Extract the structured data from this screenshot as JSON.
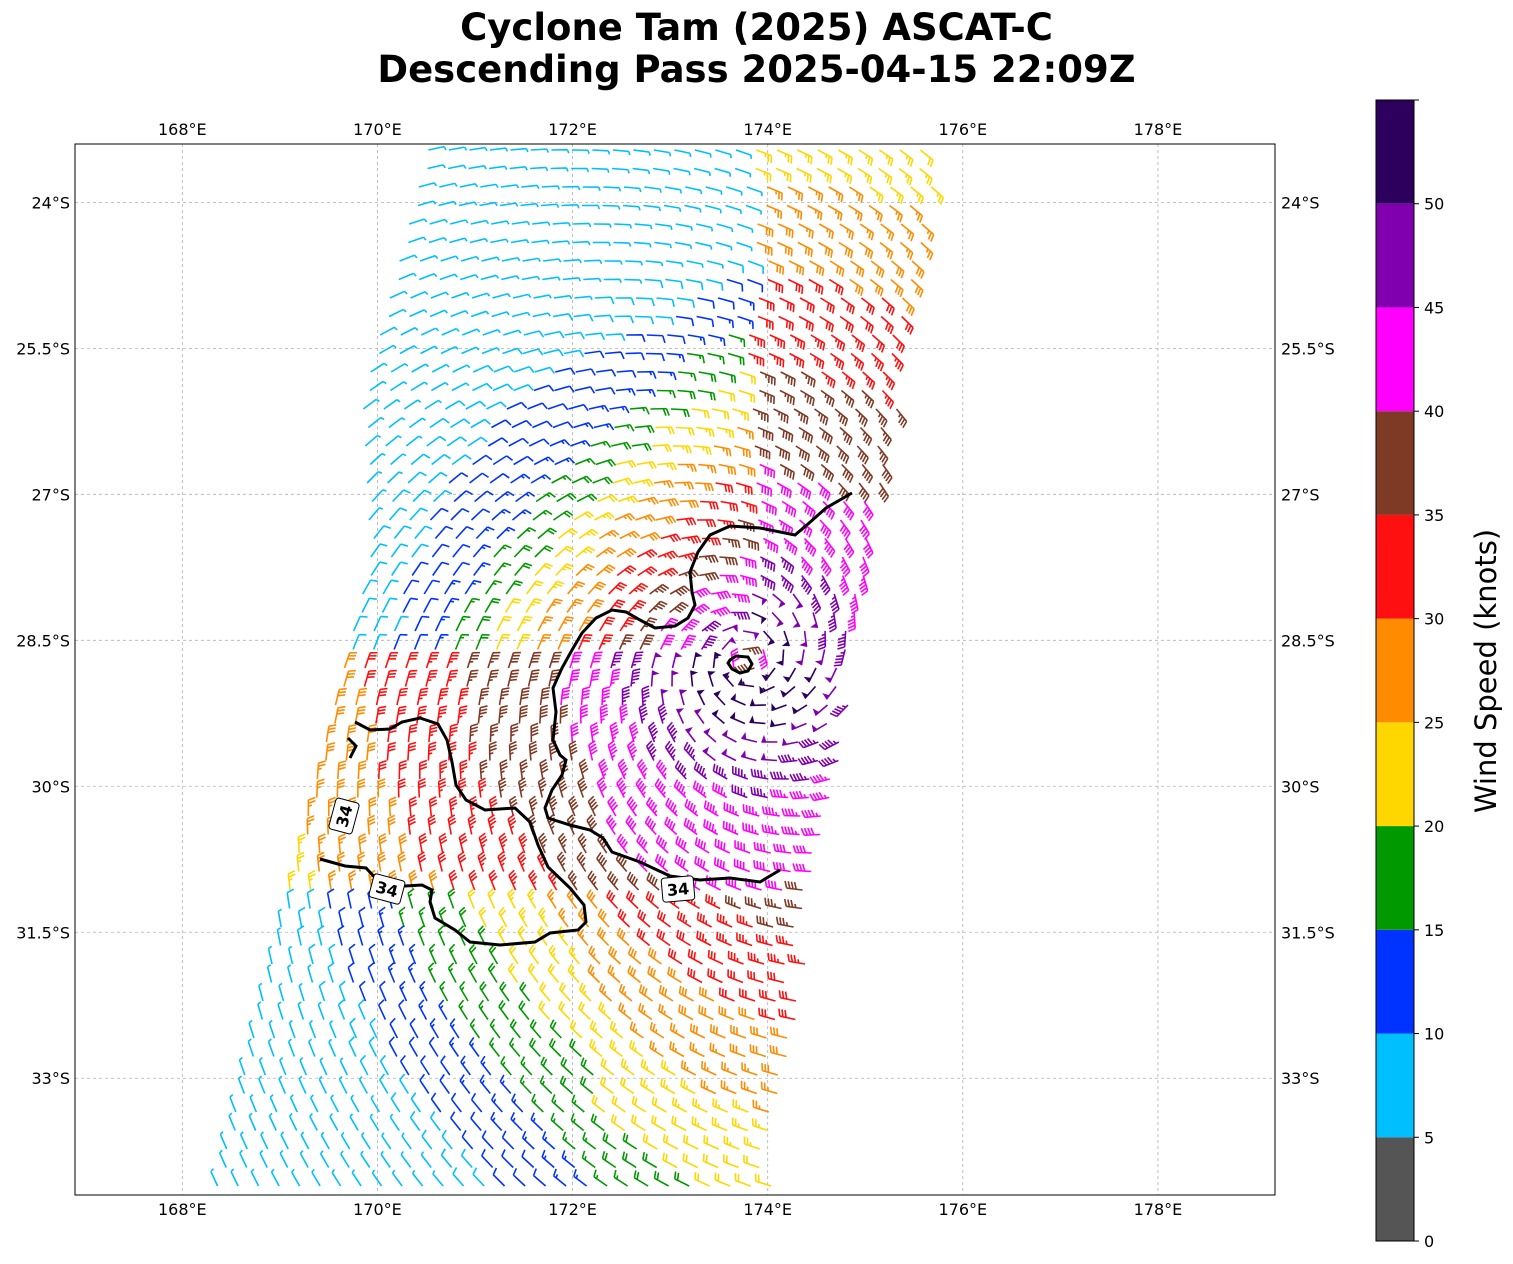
{
  "title": {
    "line1": "Cyclone Tam (2025) ASCAT-C",
    "line2": "Descending Pass 2025-04-15 22:09Z"
  },
  "chart_data": {
    "type": "wind_barb_map",
    "lon_range": [
      166.9,
      179.2
    ],
    "lat_range": [
      -34.2,
      -23.4
    ],
    "lon_ticks": [
      "168°E",
      "170°E",
      "172°E",
      "174°E",
      "176°E",
      "178°E"
    ],
    "lon_tick_values": [
      168,
      170,
      172,
      174,
      176,
      178
    ],
    "lat_ticks": [
      "24°S",
      "25.5°S",
      "27°S",
      "28.5°S",
      "30°S",
      "31.5°S",
      "33°S"
    ],
    "lat_tick_values": [
      -24,
      -25.5,
      -27,
      -28.5,
      -30,
      -31.5,
      -33
    ],
    "grid": true,
    "contour": {
      "level_knots": 34,
      "labels": [
        "34",
        "34",
        "34"
      ]
    },
    "colorbar": {
      "label": "Wind Speed (knots)",
      "tick_labels": [
        "0",
        "5",
        "10",
        "15",
        "20",
        "25",
        "30",
        "35",
        "40",
        "45",
        "50"
      ],
      "bounds": [
        0,
        5,
        10,
        15,
        20,
        25,
        30,
        35,
        40,
        45,
        50,
        55
      ],
      "colors": [
        "#555555",
        "#00bfff",
        "#0033ff",
        "#009900",
        "#ffd700",
        "#ff8c00",
        "#ff1010",
        "#7f3a25",
        "#ff00ff",
        "#8000b0",
        "#2e005e"
      ]
    },
    "swath": {
      "description_colors_by_speed": true,
      "max_speed_knots": 52,
      "center_lon": 173.8,
      "center_lat": -28.7
    }
  }
}
